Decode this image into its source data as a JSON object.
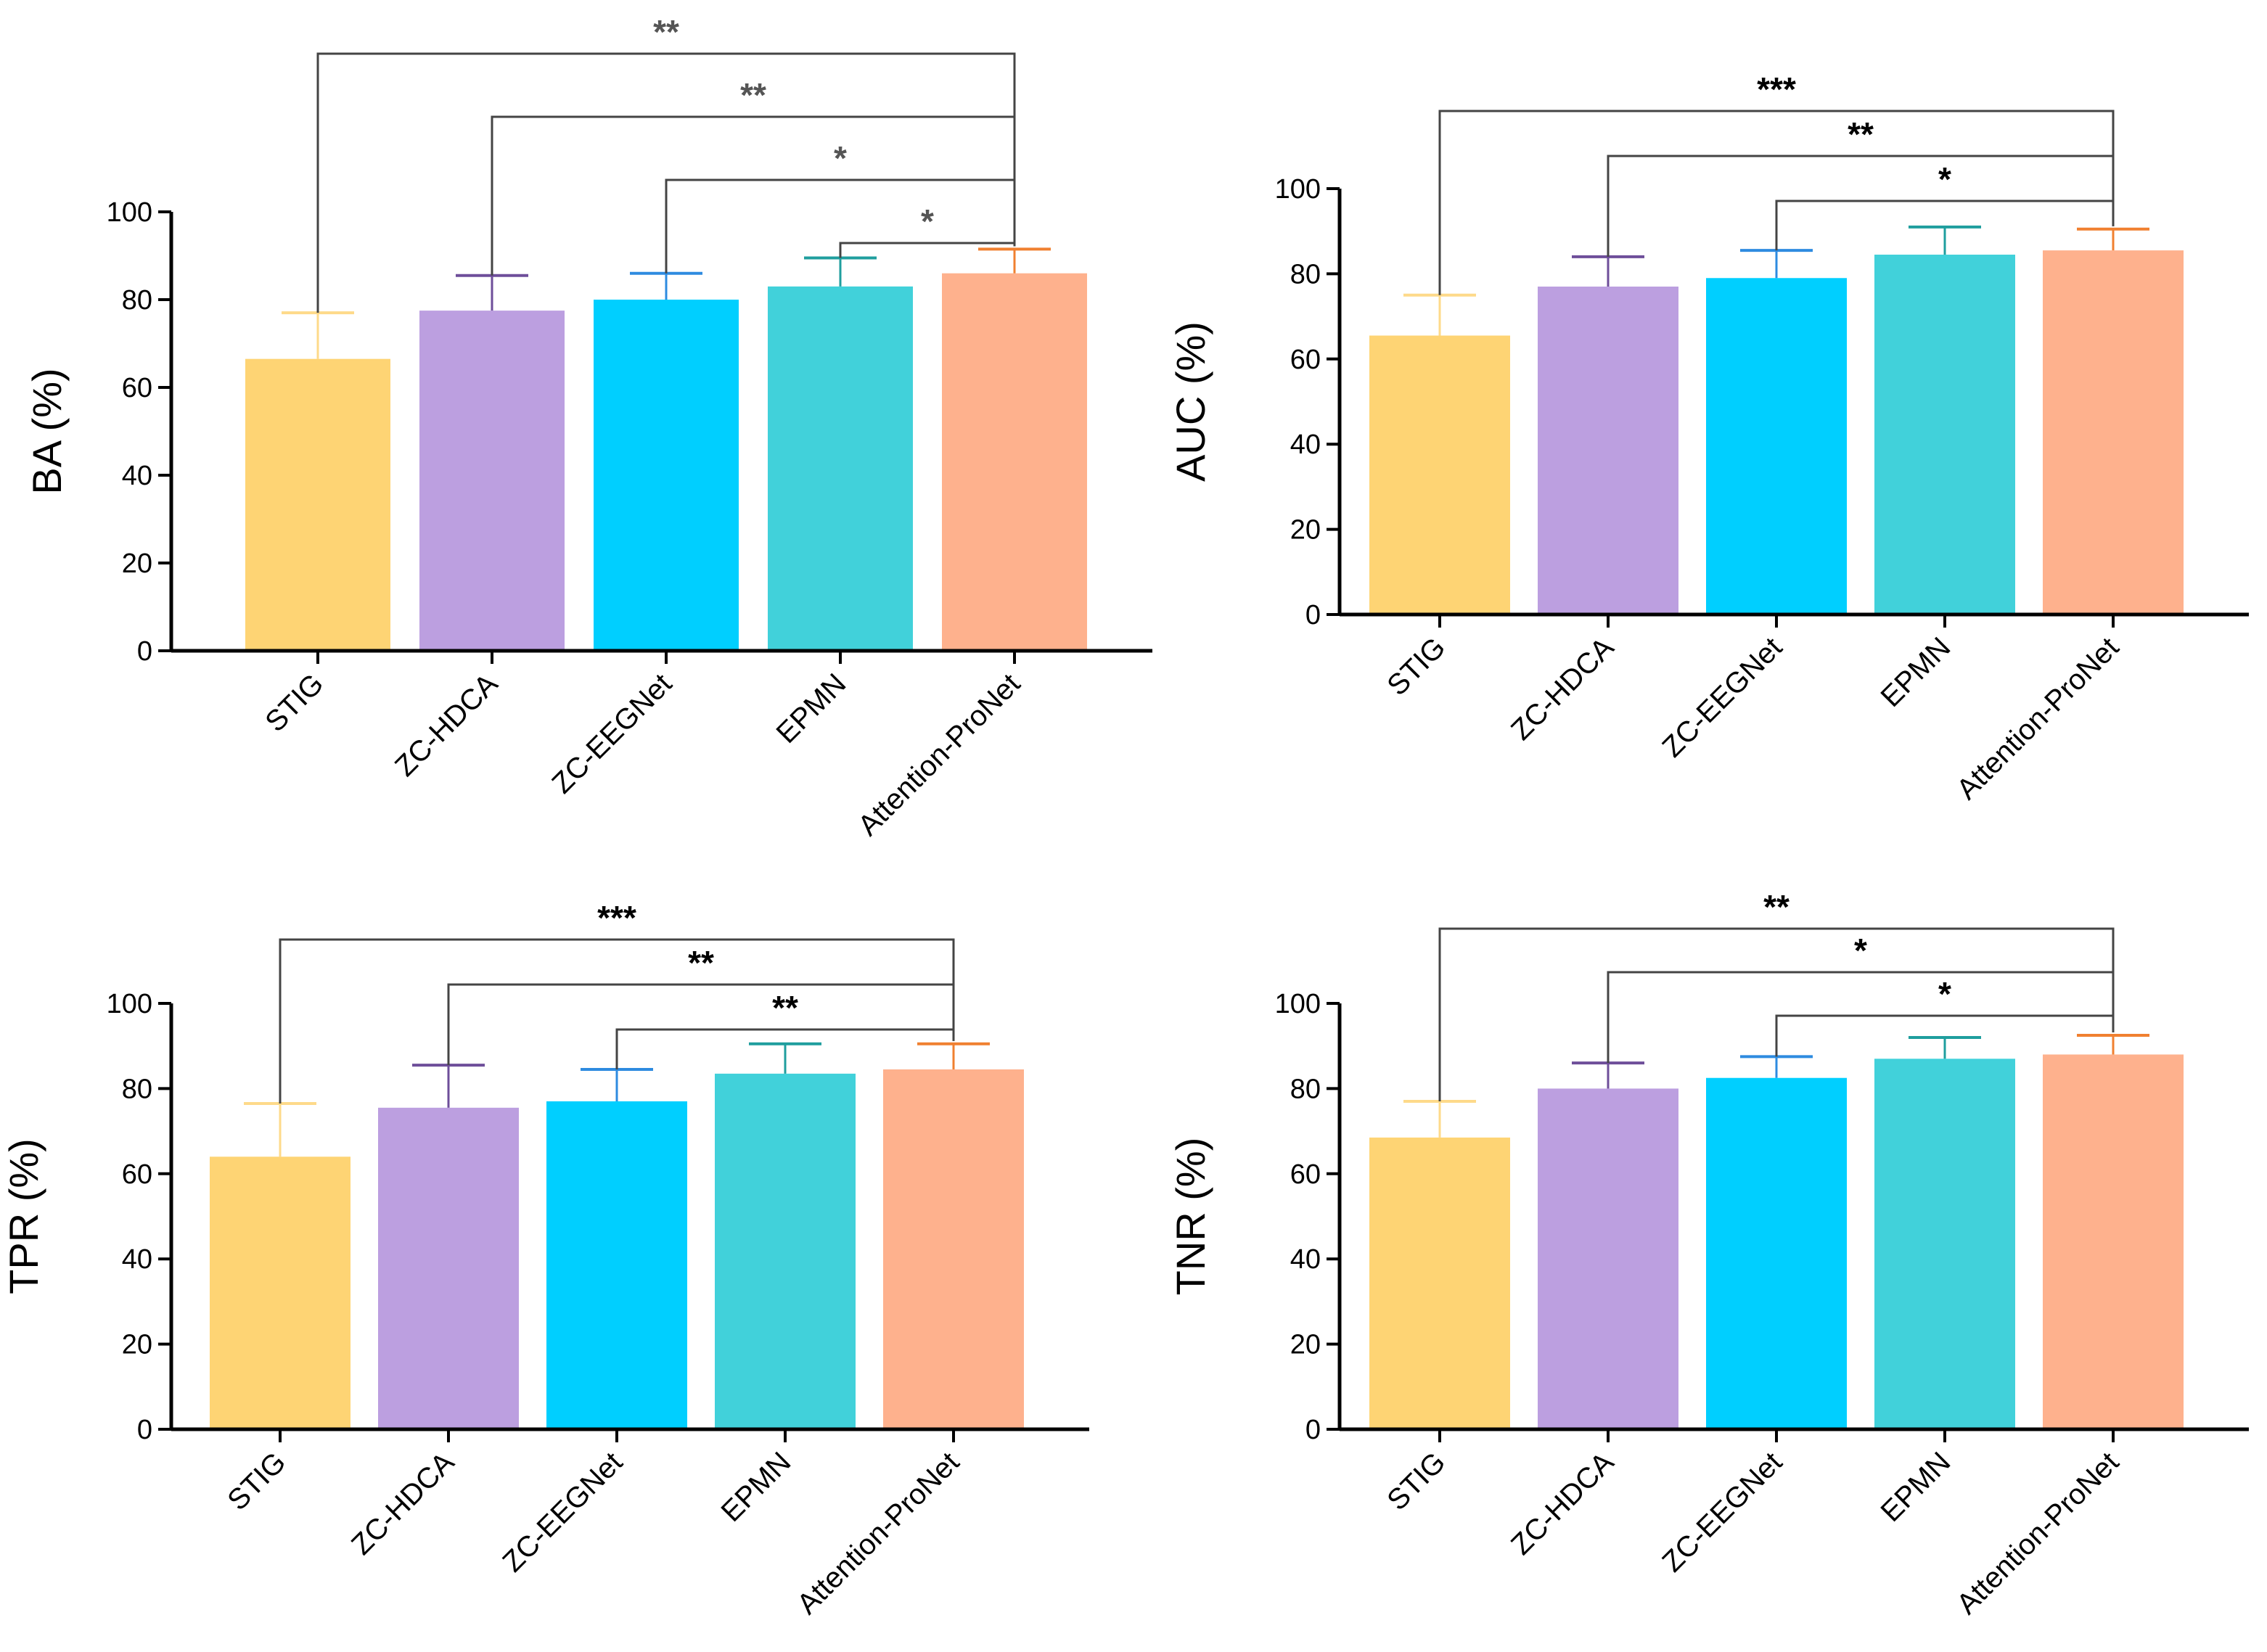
{
  "chart_data": [
    {
      "type": "bar",
      "ylabel": "BA (%)",
      "categories": [
        "STIG",
        "ZC-HDCA",
        "ZC-EEGNet",
        "EPMN",
        "Attention-ProNet"
      ],
      "values": [
        66.5,
        77.5,
        80,
        83,
        86
      ],
      "errors": [
        10.5,
        8,
        6,
        6.5,
        5.5
      ],
      "ylim": [
        0,
        100
      ],
      "yticks": [
        0,
        20,
        40,
        60,
        80,
        100
      ],
      "colors": [
        "#FED474",
        "#BC9FE0",
        "#00CFFF",
        "#41D1DA",
        "#FEB18D"
      ],
      "error_colors": [
        "#FEDA8A",
        "#6E4E9A",
        "#2E8BE0",
        "#1F9E9E",
        "#F08030"
      ],
      "star_color": "#555555",
      "significance": [
        {
          "from": 0,
          "to": 4,
          "label": "**"
        },
        {
          "from": 1,
          "to": 4,
          "label": "**"
        },
        {
          "from": 2,
          "to": 4,
          "label": "*"
        },
        {
          "from": 3,
          "to": 4,
          "label": "*"
        }
      ]
    },
    {
      "type": "bar",
      "ylabel": "AUC (%)",
      "categories": [
        "STIG",
        "ZC-HDCA",
        "ZC-EEGNet",
        "EPMN",
        "Attention-ProNet"
      ],
      "values": [
        65.5,
        77,
        79,
        84.5,
        85.5
      ],
      "errors": [
        9.5,
        7,
        6.5,
        6.5,
        5
      ],
      "ylim": [
        0,
        100
      ],
      "yticks": [
        0,
        20,
        40,
        60,
        80,
        100
      ],
      "colors": [
        "#FED474",
        "#BC9FE0",
        "#00CFFF",
        "#41D1DA",
        "#FEB18D"
      ],
      "error_colors": [
        "#FEDA8A",
        "#6E4E9A",
        "#2E8BE0",
        "#1F9E9E",
        "#F08030"
      ],
      "star_color": "#000000",
      "significance": [
        {
          "from": 0,
          "to": 4,
          "label": "***"
        },
        {
          "from": 1,
          "to": 4,
          "label": "**"
        },
        {
          "from": 2,
          "to": 4,
          "label": "*"
        }
      ]
    },
    {
      "type": "bar",
      "ylabel": "TPR (%)",
      "categories": [
        "STIG",
        "ZC-HDCA",
        "ZC-EEGNet",
        "EPMN",
        "Attention-ProNet"
      ],
      "values": [
        64,
        75.5,
        77,
        83.5,
        84.5
      ],
      "errors": [
        12.5,
        10,
        7.5,
        7,
        6
      ],
      "ylim": [
        0,
        100
      ],
      "yticks": [
        0,
        20,
        40,
        60,
        80,
        100
      ],
      "colors": [
        "#FED474",
        "#BC9FE0",
        "#00CFFF",
        "#41D1DA",
        "#FEB18D"
      ],
      "error_colors": [
        "#FEDA8A",
        "#6E4E9A",
        "#2E8BE0",
        "#1F9E9E",
        "#F08030"
      ],
      "star_color": "#000000",
      "significance": [
        {
          "from": 0,
          "to": 4,
          "label": "***"
        },
        {
          "from": 1,
          "to": 4,
          "label": "**"
        },
        {
          "from": 2,
          "to": 4,
          "label": "**"
        }
      ]
    },
    {
      "type": "bar",
      "ylabel": "TNR (%)",
      "categories": [
        "STIG",
        "ZC-HDCA",
        "ZC-EEGNet",
        "EPMN",
        "Attention-ProNet"
      ],
      "values": [
        68.5,
        80,
        82.5,
        87,
        88
      ],
      "errors": [
        8.5,
        6,
        5,
        5,
        4.5
      ],
      "ylim": [
        0,
        100
      ],
      "yticks": [
        0,
        20,
        40,
        60,
        80,
        100
      ],
      "colors": [
        "#FED474",
        "#BC9FE0",
        "#00CFFF",
        "#41D1DA",
        "#FEB18D"
      ],
      "error_colors": [
        "#FEDA8A",
        "#6E4E9A",
        "#2E8BE0",
        "#1F9E9E",
        "#F08030"
      ],
      "star_color": "#000000",
      "significance": [
        {
          "from": 0,
          "to": 4,
          "label": "**"
        },
        {
          "from": 1,
          "to": 4,
          "label": "*"
        },
        {
          "from": 2,
          "to": 4,
          "label": "*"
        }
      ]
    }
  ]
}
